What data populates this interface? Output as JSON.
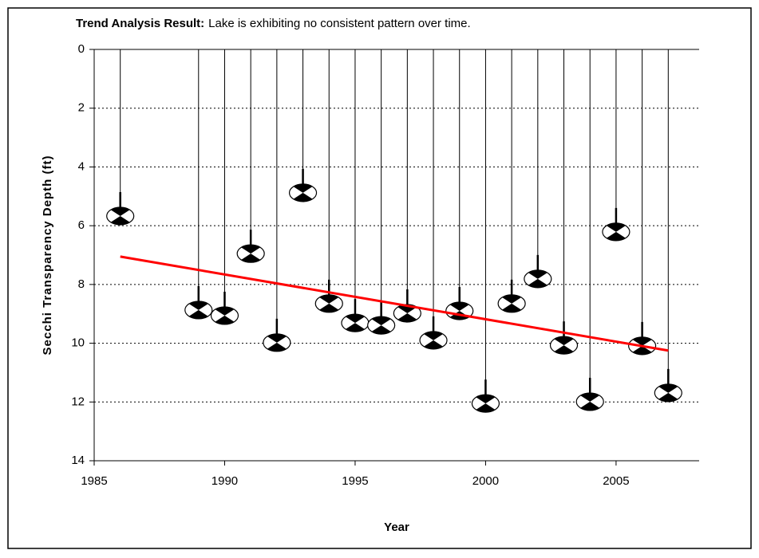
{
  "chart_data": {
    "type": "secchi",
    "title_prefix": "Trend Analysis Result:",
    "title": "Lake is exhibiting no consistent pattern over time.",
    "xlabel": "Year",
    "ylabel": "Secchi Transparency Depth (ft)",
    "x": [
      1986,
      1989,
      1990,
      1991,
      1992,
      1993,
      1994,
      1995,
      1996,
      1997,
      1998,
      1999,
      2000,
      2001,
      2002,
      2003,
      2004,
      2005,
      2006,
      2007
    ],
    "values": [
      5.67,
      8.87,
      9.06,
      6.95,
      9.98,
      4.88,
      8.65,
      9.31,
      9.39,
      8.98,
      9.9,
      8.9,
      12.05,
      8.65,
      7.81,
      10.07,
      11.99,
      6.21,
      10.09,
      11.69
    ],
    "trend": {
      "x": [
        1986,
        2007
      ],
      "values": [
        7.05,
        10.25
      ],
      "color": "#ff0000"
    },
    "xlim": [
      1985,
      2008
    ],
    "xticks": [
      1985,
      1990,
      1995,
      2000,
      2005
    ],
    "ylim": [
      0,
      14
    ],
    "yticks": [
      0,
      2,
      4,
      6,
      8,
      10,
      12,
      14
    ],
    "y_inverted": true,
    "grid": true
  }
}
